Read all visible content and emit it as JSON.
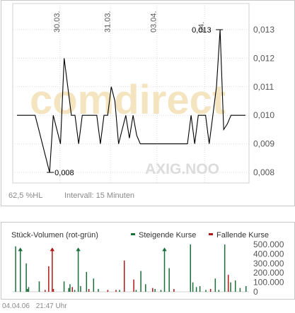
{
  "chart_data": [
    {
      "type": "line",
      "x_ticks": [
        "30.03.",
        "31.03.",
        "03.04.",
        "04."
      ],
      "y_ticks": [
        "0,013",
        "0,012",
        "0,011",
        "0,010",
        "0,009",
        "0,008"
      ],
      "ylim": [
        0.0075,
        0.0135
      ],
      "grid": true,
      "series": [
        {
          "values": [
            0.01,
            0.01,
            0.01,
            0.01,
            0.01,
            0.01,
            0.0095,
            0.009,
            0.0085,
            0.008,
            0.01,
            0.0095,
            0.009,
            0.012,
            0.011,
            0.01,
            0.01,
            0.009,
            0.01,
            0.01,
            0.01,
            0.01,
            0.01,
            0.009,
            0.01,
            0.01,
            0.011,
            0.0105,
            0.009,
            0.0095,
            0.01,
            0.0092,
            0.01,
            0.0093,
            0.009,
            0.009,
            0.009,
            0.009,
            0.009,
            0.009,
            0.009,
            0.009,
            0.009,
            0.009,
            0.009,
            0.009,
            0.009,
            0.009,
            0.01,
            0.009,
            0.01,
            0.01,
            0.01,
            0.009,
            0.01,
            0.011,
            0.013,
            0.0095,
            0.0097,
            0.01,
            0.01,
            0.01,
            0.01,
            0.01
          ]
        }
      ],
      "annotations": {
        "max_label": "0,013",
        "min_label": "0,008"
      },
      "watermark": "comdirect",
      "symbol_watermark": "AXIG.NOO",
      "hl_label": "62,5 %HL",
      "interval_label": "Intervall: 15 Minuten"
    },
    {
      "type": "bar",
      "title": "Stück-Volumen (rot-grün)",
      "legend": [
        {
          "name": "Steigende Kurse",
          "color": "#1a6e3a"
        },
        {
          "name": "Fallende Kurse",
          "color": "#b01818"
        }
      ],
      "y_ticks": [
        "500.000",
        "400.000",
        "300.000",
        "200.000",
        "100.000",
        "0"
      ],
      "ylim": [
        0,
        500000
      ],
      "bars": [
        {
          "x": 0.01,
          "v": 480000,
          "d": "up",
          "arrow": false
        },
        {
          "x": 0.03,
          "v": 460000,
          "d": "up",
          "arrow": true
        },
        {
          "x": 0.055,
          "v": 300000,
          "d": "up",
          "arrow": false
        },
        {
          "x": 0.06,
          "v": 30000,
          "d": "up",
          "arrow": false
        },
        {
          "x": 0.065,
          "v": 50000,
          "d": "up",
          "arrow": false
        },
        {
          "x": 0.11,
          "v": 110000,
          "d": "up",
          "arrow": false
        },
        {
          "x": 0.135,
          "v": 20000,
          "d": "down",
          "arrow": false
        },
        {
          "x": 0.15,
          "v": 270000,
          "d": "down",
          "arrow": false
        },
        {
          "x": 0.165,
          "v": 460000,
          "d": "down",
          "arrow": true
        },
        {
          "x": 0.17,
          "v": 30000,
          "d": "down",
          "arrow": false
        },
        {
          "x": 0.215,
          "v": 110000,
          "d": "up",
          "arrow": false
        },
        {
          "x": 0.235,
          "v": 40000,
          "d": "up",
          "arrow": false
        },
        {
          "x": 0.24,
          "v": 80000,
          "d": "up",
          "arrow": false
        },
        {
          "x": 0.25,
          "v": 50000,
          "d": "down",
          "arrow": false
        },
        {
          "x": 0.26,
          "v": 20000,
          "d": "up",
          "arrow": false
        },
        {
          "x": 0.275,
          "v": 460000,
          "d": "up",
          "arrow": true
        },
        {
          "x": 0.285,
          "v": 60000,
          "d": "up",
          "arrow": false
        },
        {
          "x": 0.31,
          "v": 210000,
          "d": "up",
          "arrow": false
        },
        {
          "x": 0.32,
          "v": 30000,
          "d": "down",
          "arrow": false
        },
        {
          "x": 0.34,
          "v": 140000,
          "d": "up",
          "arrow": false
        },
        {
          "x": 0.36,
          "v": 30000,
          "d": "up",
          "arrow": false
        },
        {
          "x": 0.4,
          "v": 20000,
          "d": "down",
          "arrow": false
        },
        {
          "x": 0.435,
          "v": 20000,
          "d": "down",
          "arrow": false
        },
        {
          "x": 0.45,
          "v": 20000,
          "d": "up",
          "arrow": false
        },
        {
          "x": 0.47,
          "v": 330000,
          "d": "down",
          "arrow": false
        },
        {
          "x": 0.51,
          "v": 130000,
          "d": "down",
          "arrow": false
        },
        {
          "x": 0.52,
          "v": 20000,
          "d": "up",
          "arrow": false
        },
        {
          "x": 0.54,
          "v": 220000,
          "d": "up",
          "arrow": false
        },
        {
          "x": 0.56,
          "v": 80000,
          "d": "up",
          "arrow": false
        },
        {
          "x": 0.59,
          "v": 40000,
          "d": "down",
          "arrow": false
        },
        {
          "x": 0.6,
          "v": 30000,
          "d": "up",
          "arrow": false
        },
        {
          "x": 0.625,
          "v": 20000,
          "d": "up",
          "arrow": false
        },
        {
          "x": 0.64,
          "v": 460000,
          "d": "up",
          "arrow": true
        },
        {
          "x": 0.66,
          "v": 250000,
          "d": "up",
          "arrow": false
        },
        {
          "x": 0.68,
          "v": 30000,
          "d": "down",
          "arrow": false
        },
        {
          "x": 0.75,
          "v": 500000,
          "d": "up",
          "arrow": false
        },
        {
          "x": 0.76,
          "v": 100000,
          "d": "up",
          "arrow": false
        },
        {
          "x": 0.775,
          "v": 50000,
          "d": "up",
          "arrow": false
        },
        {
          "x": 0.79,
          "v": 60000,
          "d": "up",
          "arrow": false
        },
        {
          "x": 0.815,
          "v": 20000,
          "d": "up",
          "arrow": false
        },
        {
          "x": 0.835,
          "v": 30000,
          "d": "down",
          "arrow": false
        },
        {
          "x": 0.855,
          "v": 140000,
          "d": "up",
          "arrow": false
        },
        {
          "x": 0.87,
          "v": 20000,
          "d": "up",
          "arrow": false
        },
        {
          "x": 0.895,
          "v": 500000,
          "d": "up",
          "arrow": false
        },
        {
          "x": 0.91,
          "v": 180000,
          "d": "down",
          "arrow": false
        },
        {
          "x": 0.92,
          "v": 100000,
          "d": "up",
          "arrow": false
        },
        {
          "x": 0.94,
          "v": 120000,
          "d": "up",
          "arrow": false
        },
        {
          "x": 0.96,
          "v": 40000,
          "d": "up",
          "arrow": false
        },
        {
          "x": 0.985,
          "v": 60000,
          "d": "up",
          "arrow": false
        }
      ]
    }
  ],
  "footer": {
    "date": "04.04.06",
    "time": "21:47 Uhr"
  }
}
